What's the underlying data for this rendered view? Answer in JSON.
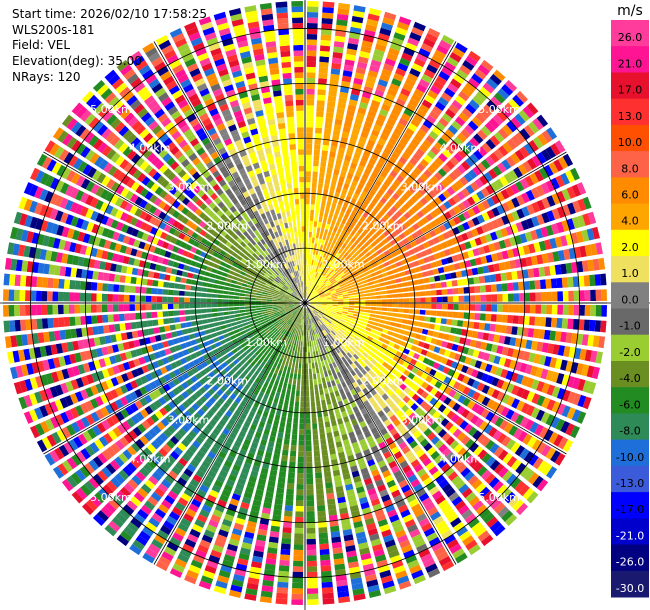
{
  "header": {
    "start_time": "Start time: 2026/02/10 17:58:25",
    "instrument": "WLS200s-181",
    "field": "Field: VEL",
    "elevation": "Elevation(deg): 35.00",
    "nrays": "NRays: 120"
  },
  "chart_data": {
    "type": "heatmap",
    "projection": "polar PPI scan",
    "field": "VEL",
    "units": "m/s",
    "n_rays": 120,
    "elevation_deg": 35.0,
    "max_range_km": 5.5,
    "range_rings_km": [
      1,
      2,
      3,
      4,
      5
    ],
    "range_ring_labels": [
      "1.00km",
      "2.00km",
      "3.00km",
      "4.00km",
      "5.00km"
    ],
    "colorbar": {
      "title": "m/s",
      "boundaries": [
        26.0,
        21.0,
        17.0,
        13.0,
        10.0,
        8.0,
        6.0,
        4.0,
        2.0,
        1.0,
        0.0,
        -1.0,
        -2.0,
        -4.0,
        -6.0,
        -8.0,
        -10.0,
        -13.0,
        -17.0,
        -21.0,
        -26.0,
        -30.0
      ],
      "tick_labels": [
        "26.0",
        "21.0",
        "17.0",
        "13.0",
        "10.0",
        "8.0",
        "6.0",
        "4.0",
        "2.0",
        "1.0",
        "0.0",
        "-1.0",
        "-2.0",
        "-4.0",
        "-6.0",
        "-8.0",
        "-10.0",
        "-13.0",
        "-17.0",
        "-21.0",
        "-26.0",
        "-30.0"
      ],
      "colors": [
        "#ff3b9c",
        "#ff1493",
        "#e8112d",
        "#ff3030",
        "#ff4f00",
        "#ff6347",
        "#ff8c00",
        "#ffa500",
        "#ffff00",
        "#f0e060",
        "#808080",
        "#696969",
        "#9acd32",
        "#6b8e23",
        "#228b22",
        "#2e8b57",
        "#1e6fd9",
        "#3b5bdb",
        "#0000ff",
        "#0000cd",
        "#000080",
        "#191970"
      ]
    }
  }
}
